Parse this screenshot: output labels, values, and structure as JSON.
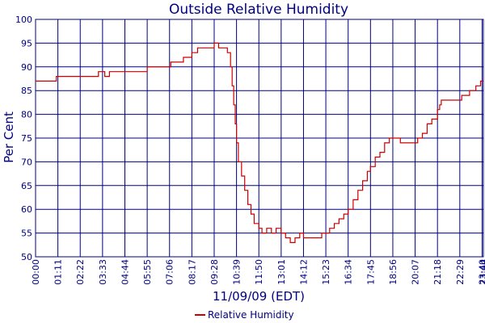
{
  "chart_data": {
    "type": "line",
    "title": "Outside Relative Humidity",
    "xlabel": "11/09/09 (EDT)",
    "ylabel": "Per Cent",
    "ylim": [
      50,
      100
    ],
    "yticks": [
      "50",
      "55",
      "60",
      "65",
      "70",
      "75",
      "80",
      "85",
      "90",
      "95",
      "100"
    ],
    "xticks": [
      "00:00",
      "01:11",
      "02:22",
      "03:33",
      "04:44",
      "05:55",
      "07:06",
      "08:17",
      "09:28",
      "10:39",
      "11:50",
      "13:01",
      "14:12",
      "15:23",
      "16:34",
      "17:45",
      "18:56",
      "20:07",
      "21:18",
      "22:29",
      "23:40",
      "23:44"
    ],
    "grid": true,
    "legend": "bottom-center",
    "colors": {
      "series": "#cc0000",
      "grid": "#000080",
      "text": "#000080"
    },
    "series": [
      {
        "name": "Relative Humidity",
        "points": [
          [
            "00:00",
            87
          ],
          [
            "01:00",
            87
          ],
          [
            "01:06",
            87
          ],
          [
            "01:06",
            88
          ],
          [
            "02:00",
            88
          ],
          [
            "03:00",
            88
          ],
          [
            "03:20",
            88
          ],
          [
            "03:20",
            89
          ],
          [
            "03:40",
            89
          ],
          [
            "03:40",
            88
          ],
          [
            "03:55",
            88
          ],
          [
            "03:55",
            89
          ],
          [
            "04:40",
            89
          ],
          [
            "05:30",
            89
          ],
          [
            "05:55",
            89
          ],
          [
            "05:55",
            90
          ],
          [
            "06:40",
            90
          ],
          [
            "07:06",
            90
          ],
          [
            "07:10",
            91
          ],
          [
            "07:40",
            91
          ],
          [
            "07:50",
            92
          ],
          [
            "08:05",
            92
          ],
          [
            "08:17",
            93
          ],
          [
            "08:25",
            93
          ],
          [
            "08:35",
            94
          ],
          [
            "09:00",
            94
          ],
          [
            "09:20",
            94
          ],
          [
            "09:28",
            95
          ],
          [
            "09:38",
            95
          ],
          [
            "09:42",
            94
          ],
          [
            "10:00",
            94
          ],
          [
            "10:10",
            93
          ],
          [
            "10:20",
            90
          ],
          [
            "10:25",
            86
          ],
          [
            "10:30",
            82
          ],
          [
            "10:35",
            78
          ],
          [
            "10:39",
            74
          ],
          [
            "10:45",
            70
          ],
          [
            "10:55",
            67
          ],
          [
            "11:05",
            64
          ],
          [
            "11:15",
            61
          ],
          [
            "11:25",
            59
          ],
          [
            "11:35",
            57
          ],
          [
            "11:50",
            56
          ],
          [
            "12:00",
            55
          ],
          [
            "12:15",
            56
          ],
          [
            "12:30",
            55
          ],
          [
            "12:45",
            56
          ],
          [
            "13:01",
            55
          ],
          [
            "13:15",
            54
          ],
          [
            "13:30",
            53
          ],
          [
            "13:45",
            54
          ],
          [
            "14:00",
            55
          ],
          [
            "14:12",
            54
          ],
          [
            "14:30",
            54
          ],
          [
            "14:45",
            54
          ],
          [
            "15:00",
            54
          ],
          [
            "15:10",
            55
          ],
          [
            "15:23",
            55
          ],
          [
            "15:35",
            56
          ],
          [
            "15:50",
            57
          ],
          [
            "16:05",
            58
          ],
          [
            "16:20",
            59
          ],
          [
            "16:34",
            60
          ],
          [
            "16:50",
            62
          ],
          [
            "17:05",
            64
          ],
          [
            "17:20",
            66
          ],
          [
            "17:35",
            68
          ],
          [
            "17:45",
            69
          ],
          [
            "18:00",
            71
          ],
          [
            "18:15",
            72
          ],
          [
            "18:30",
            74
          ],
          [
            "18:45",
            75
          ],
          [
            "18:56",
            75
          ],
          [
            "19:10",
            75
          ],
          [
            "19:20",
            74
          ],
          [
            "19:40",
            74
          ],
          [
            "20:07",
            74
          ],
          [
            "20:15",
            75
          ],
          [
            "20:30",
            76
          ],
          [
            "20:45",
            78
          ],
          [
            "21:00",
            79
          ],
          [
            "21:18",
            81
          ],
          [
            "21:25",
            82
          ],
          [
            "21:30",
            83
          ],
          [
            "22:00",
            83
          ],
          [
            "22:29",
            83
          ],
          [
            "22:35",
            84
          ],
          [
            "23:00",
            85
          ],
          [
            "23:20",
            86
          ],
          [
            "23:35",
            87
          ],
          [
            "23:44",
            87
          ]
        ]
      }
    ]
  }
}
